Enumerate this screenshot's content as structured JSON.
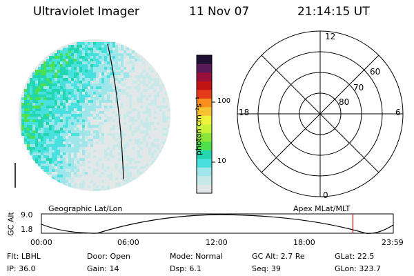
{
  "header": {
    "title": "Ultraviolet Imager",
    "date": "11 Nov 07",
    "time": "21:14:15 UT"
  },
  "colorbar": {
    "unit_label": "photon cm⁻²s⁻¹",
    "scale": "log",
    "ticks": [
      "100",
      "10"
    ],
    "colors": [
      "#dfe6e6",
      "#c8e9ea",
      "#9fe6ea",
      "#49e0e0",
      "#22d6b0",
      "#4ce04c",
      "#8ae63a",
      "#c8f23a",
      "#eef23a",
      "#f7c232",
      "#f78e1e",
      "#e33a1a",
      "#c01414",
      "#98103a",
      "#5a1a5a",
      "#1e0f33"
    ]
  },
  "polar_plot": {
    "hour_labels": [
      "12",
      "18",
      "6",
      "0"
    ],
    "lat_labels": [
      "60",
      "70",
      "80"
    ]
  },
  "timeline": {
    "left_title": "Geographic Lat/Lon",
    "right_title": "Apex MLat/MLT",
    "y_axis_label": "GC Alt",
    "y_ticks": [
      "9.0",
      "1.8"
    ],
    "x_ticks": [
      "00:00",
      "06:00",
      "12:00",
      "18:00",
      "23:59"
    ],
    "marker_time": "21:14",
    "marker_color": "#cc0000"
  },
  "status": {
    "row1": [
      {
        "key": "filter",
        "text": "Flt: LBHL"
      },
      {
        "key": "door",
        "text": "Door: Open"
      },
      {
        "key": "mode",
        "text": "Mode: Normal"
      },
      {
        "key": "gc_alt",
        "text": "GC Alt: 2.7 Re"
      },
      {
        "key": "glat",
        "text": "GLat:  22.5"
      }
    ],
    "row2": [
      {
        "key": "ip",
        "text": "IP: 36.0"
      },
      {
        "key": "gain",
        "text": "Gain: 14"
      },
      {
        "key": "dsp",
        "text": "Dsp:    6.1"
      },
      {
        "key": "seq",
        "text": "Seq: 39"
      },
      {
        "key": "glon",
        "text": "GLon: 323.7"
      }
    ]
  }
}
